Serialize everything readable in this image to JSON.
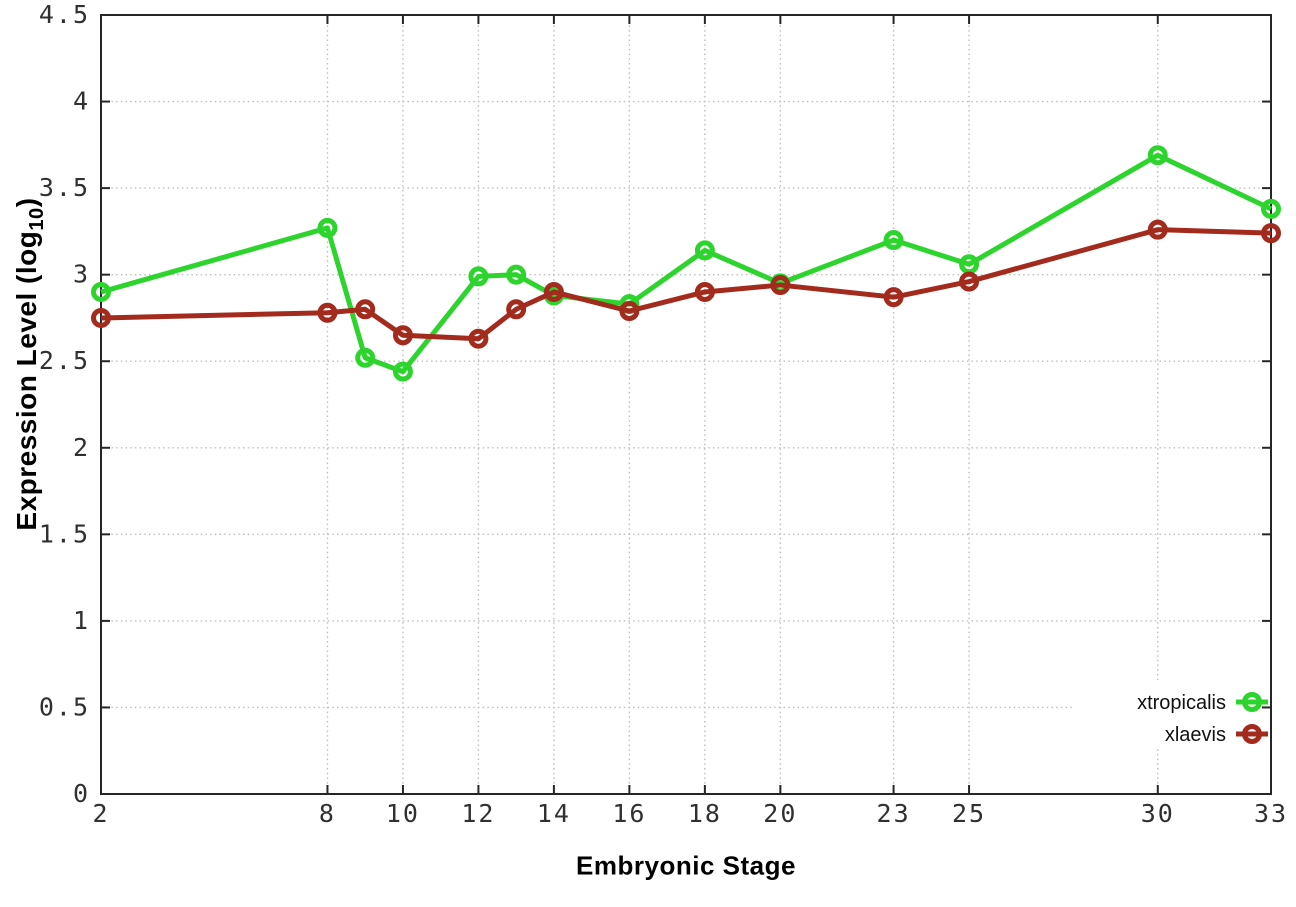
{
  "chart_data": {
    "type": "line",
    "title": "",
    "xlabel": "Embryonic Stage",
    "ylabel": "Expression Level (log10)",
    "ylabel_parts": {
      "pre": "Expression Level (log",
      "sub": "10",
      "post": ")"
    },
    "x": [
      2,
      8,
      9,
      10,
      12,
      13,
      14,
      16,
      18,
      20,
      23,
      25,
      30,
      33
    ],
    "series": [
      {
        "name": "xtropicalis",
        "color": "#2dd42d",
        "values": [
          2.9,
          3.27,
          2.52,
          2.44,
          2.99,
          3.0,
          2.88,
          2.83,
          3.14,
          2.95,
          3.2,
          3.06,
          3.69,
          3.38
        ]
      },
      {
        "name": "xlaevis",
        "color": "#a32b1e",
        "values": [
          2.75,
          2.78,
          2.8,
          2.65,
          2.63,
          2.8,
          2.9,
          2.79,
          2.9,
          2.94,
          2.87,
          2.96,
          3.26,
          3.24
        ]
      }
    ],
    "xlim": [
      2,
      33
    ],
    "ylim": [
      0,
      4.5
    ],
    "xticks": [
      2,
      8,
      10,
      12,
      14,
      16,
      18,
      20,
      23,
      25,
      30,
      33
    ],
    "yticks": [
      0,
      0.5,
      1,
      1.5,
      2,
      2.5,
      3,
      3.5,
      4,
      4.5
    ],
    "grid": true,
    "grid_style": "dotted",
    "marker": "open-circle",
    "legend": {
      "position": "inside-bottom-right",
      "entries": [
        "xtropicalis",
        "xlaevis"
      ]
    },
    "colors": {
      "grid": "#bdbdbd",
      "border": "#262626",
      "tick_label": "#303030",
      "legend_text": "#111111"
    }
  }
}
